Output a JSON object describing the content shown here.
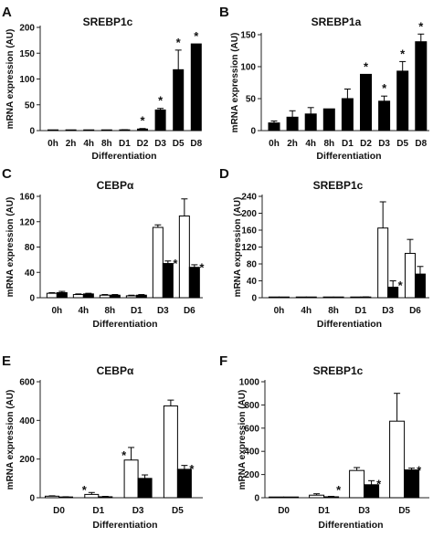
{
  "chart_data": [
    {
      "type": "bar",
      "panel": "A",
      "title": "SREBP1c",
      "xlabel": "Differentiation",
      "ylabel": "mRNA expression (AU)",
      "ylim": [
        0,
        200
      ],
      "yticks": [
        "0",
        "50",
        "100",
        "150",
        "200"
      ],
      "categories": [
        "0h",
        "2h",
        "4h",
        "8h",
        "D1",
        "D2",
        "D3",
        "D5",
        "D8"
      ],
      "series": [
        {
          "values": [
            0.3,
            0.3,
            0.3,
            0.3,
            1.5,
            3,
            40,
            118,
            168
          ],
          "errors": [
            0,
            0,
            0,
            0,
            0.3,
            1,
            3,
            38,
            0
          ],
          "fill": "#000000"
        }
      ],
      "significant": [
        [],
        [],
        [],
        [],
        [],
        [
          "*"
        ],
        [
          "*"
        ],
        [
          "*"
        ],
        [
          "*"
        ]
      ]
    },
    {
      "type": "bar",
      "panel": "B",
      "title": "SREBP1a",
      "xlabel": "Differentiation",
      "ylabel": "mRNA expression (AU)",
      "ylim": [
        0,
        150
      ],
      "yticks": [
        "0",
        "50",
        "100",
        "150"
      ],
      "categories": [
        "0h",
        "2h",
        "4h",
        "8h",
        "D1",
        "D2",
        "D3",
        "D5",
        "D8"
      ],
      "series": [
        {
          "values": [
            12,
            21,
            26,
            34,
            50,
            88,
            46,
            93,
            139
          ],
          "errors": [
            3,
            10,
            10,
            0,
            15,
            0,
            8,
            15,
            12
          ],
          "fill": "#000000"
        }
      ],
      "significant": [
        [],
        [],
        [],
        [],
        [],
        [
          "*"
        ],
        [
          "*"
        ],
        [
          "*"
        ],
        [
          "*"
        ]
      ]
    },
    {
      "type": "bar",
      "panel": "C",
      "title": "CEBPα",
      "xlabel": "Differentiation",
      "ylabel": "mRNA expression (AU)",
      "ylim": [
        0,
        160
      ],
      "yticks": [
        "0",
        "40",
        "80",
        "120",
        "160"
      ],
      "categories": [
        "0h",
        "4h",
        "8h",
        "D1",
        "D3",
        "D6"
      ],
      "series": [
        {
          "values": [
            7,
            5,
            4,
            3,
            111,
            129
          ],
          "errors": [
            1,
            1,
            1,
            1,
            4,
            27
          ],
          "fill": "#ffffff"
        },
        {
          "values": [
            8,
            6,
            4,
            4,
            54,
            48
          ],
          "errors": [
            2,
            1,
            1,
            1,
            4,
            4
          ],
          "fill": "#000000"
        }
      ],
      "significant": [
        [],
        [],
        [],
        [],
        [
          "",
          "*"
        ],
        [
          "",
          "*"
        ]
      ]
    },
    {
      "type": "bar",
      "panel": "D",
      "title": "SREBP1c",
      "xlabel": "Differentiation",
      "ylabel": "mRNA expression (AU)",
      "ylim": [
        0,
        240
      ],
      "yticks": [
        "0",
        "40",
        "80",
        "120",
        "160",
        "200",
        "240"
      ],
      "categories": [
        "0h",
        "4h",
        "8h",
        "D1",
        "D3",
        "D6"
      ],
      "series": [
        {
          "values": [
            0.5,
            0.5,
            0.5,
            0.5,
            165,
            105
          ],
          "errors": [
            0,
            0,
            0,
            0,
            62,
            33
          ],
          "fill": "#ffffff"
        },
        {
          "values": [
            0.5,
            0.5,
            0.5,
            1,
            25,
            56
          ],
          "errors": [
            0,
            0,
            0,
            1,
            15,
            18
          ],
          "fill": "#000000"
        }
      ],
      "significant": [
        [],
        [],
        [],
        [],
        [
          "",
          "*"
        ],
        []
      ]
    },
    {
      "type": "bar",
      "panel": "E",
      "title": "CEBPα",
      "xlabel": "Differentiation",
      "ylabel": "mRNA expression (AU)",
      "ylim": [
        0,
        600
      ],
      "yticks": [
        "0",
        "200",
        "400",
        "600"
      ],
      "categories": [
        "D0",
        "D1",
        "D3",
        "D5"
      ],
      "series": [
        {
          "values": [
            8,
            17,
            195,
            475
          ],
          "errors": [
            2,
            10,
            65,
            30
          ],
          "fill": "#ffffff"
        },
        {
          "values": [
            4,
            5,
            100,
            147
          ],
          "errors": [
            1,
            2,
            18,
            20
          ],
          "fill": "#000000"
        }
      ],
      "significant": [
        [],
        [
          "*",
          ""
        ],
        [
          "*",
          ""
        ],
        [
          "",
          "*"
        ]
      ]
    },
    {
      "type": "bar",
      "panel": "F",
      "title": "SREBP1c",
      "xlabel": "Differentiation",
      "ylabel": "mRNA expression (AU)",
      "ylim": [
        0,
        1000
      ],
      "yticks": [
        "0",
        "200",
        "400",
        "600",
        "800",
        "1000"
      ],
      "categories": [
        "D0",
        "D1",
        "D3",
        "D5"
      ],
      "series": [
        {
          "values": [
            2,
            22,
            235,
            660
          ],
          "errors": [
            0,
            12,
            25,
            240
          ],
          "fill": "#ffffff"
        },
        {
          "values": [
            1,
            8,
            112,
            240
          ],
          "errors": [
            0,
            4,
            35,
            15
          ],
          "fill": "#000000"
        }
      ],
      "significant": [
        [],
        [
          "",
          "*"
        ],
        [
          "",
          "*"
        ],
        [
          "",
          "*"
        ]
      ]
    }
  ]
}
